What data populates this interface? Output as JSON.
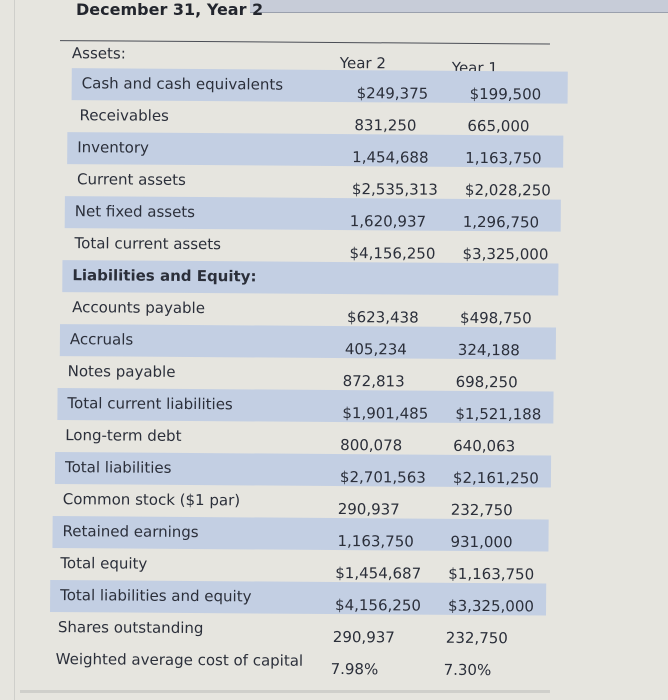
{
  "title": "December 31, Year 2",
  "columns": {
    "section": "Assets:",
    "year2": "Year 2",
    "year1": "Year 1"
  },
  "rows": [
    {
      "label": "Cash and cash equivalents",
      "year2": "$249,375",
      "year1": "$199,500",
      "shaded": true
    },
    {
      "label": "Receivables",
      "year2": "831,250",
      "year1": "665,000",
      "shaded": false
    },
    {
      "label": "Inventory",
      "year2": "1,454,688",
      "year1": "1,163,750",
      "shaded": true
    },
    {
      "label": "Current assets",
      "year2": "$2,535,313",
      "year1": "$2,028,250",
      "shaded": false
    },
    {
      "label": "Net fixed assets",
      "year2": "1,620,937",
      "year1": "1,296,750",
      "shaded": true
    },
    {
      "label": "Total current assets",
      "year2": "$4,156,250",
      "year1": "$3,325,000",
      "shaded": false
    },
    {
      "label": "Liabilities and Equity:",
      "year2": "",
      "year1": "",
      "shaded": true,
      "bold": true
    },
    {
      "label": "Accounts payable",
      "year2": "$623,438",
      "year1": "$498,750",
      "shaded": false
    },
    {
      "label": "Accruals",
      "year2": "405,234",
      "year1": "324,188",
      "shaded": true
    },
    {
      "label": "Notes payable",
      "year2": "872,813",
      "year1": "698,250",
      "shaded": false
    },
    {
      "label": "Total current liabilities",
      "year2": "$1,901,485",
      "year1": "$1,521,188",
      "shaded": true
    },
    {
      "label": "Long-term debt",
      "year2": "800,078",
      "year1": "640,063",
      "shaded": false
    },
    {
      "label": "Total liabilities",
      "year2": "$2,701,563",
      "year1": "$2,161,250",
      "shaded": true
    },
    {
      "label": "Common stock ($1 par)",
      "year2": "290,937",
      "year1": "232,750",
      "shaded": false
    },
    {
      "label": "Retained earnings",
      "year2": "1,163,750",
      "year1": "931,000",
      "shaded": true
    },
    {
      "label": "Total equity",
      "year2": "$1,454,687",
      "year1": "$1,163,750",
      "shaded": false
    },
    {
      "label": "Total liabilities and equity",
      "year2": "$4,156,250",
      "year1": "$3,325,000",
      "shaded": true
    },
    {
      "label": "Shares outstanding",
      "year2": "290,937",
      "year1": "232,750",
      "shaded": false
    },
    {
      "label": "Weighted average cost of capital",
      "year2": "7.98%",
      "year1": "7.30%",
      "shaded": false
    }
  ]
}
